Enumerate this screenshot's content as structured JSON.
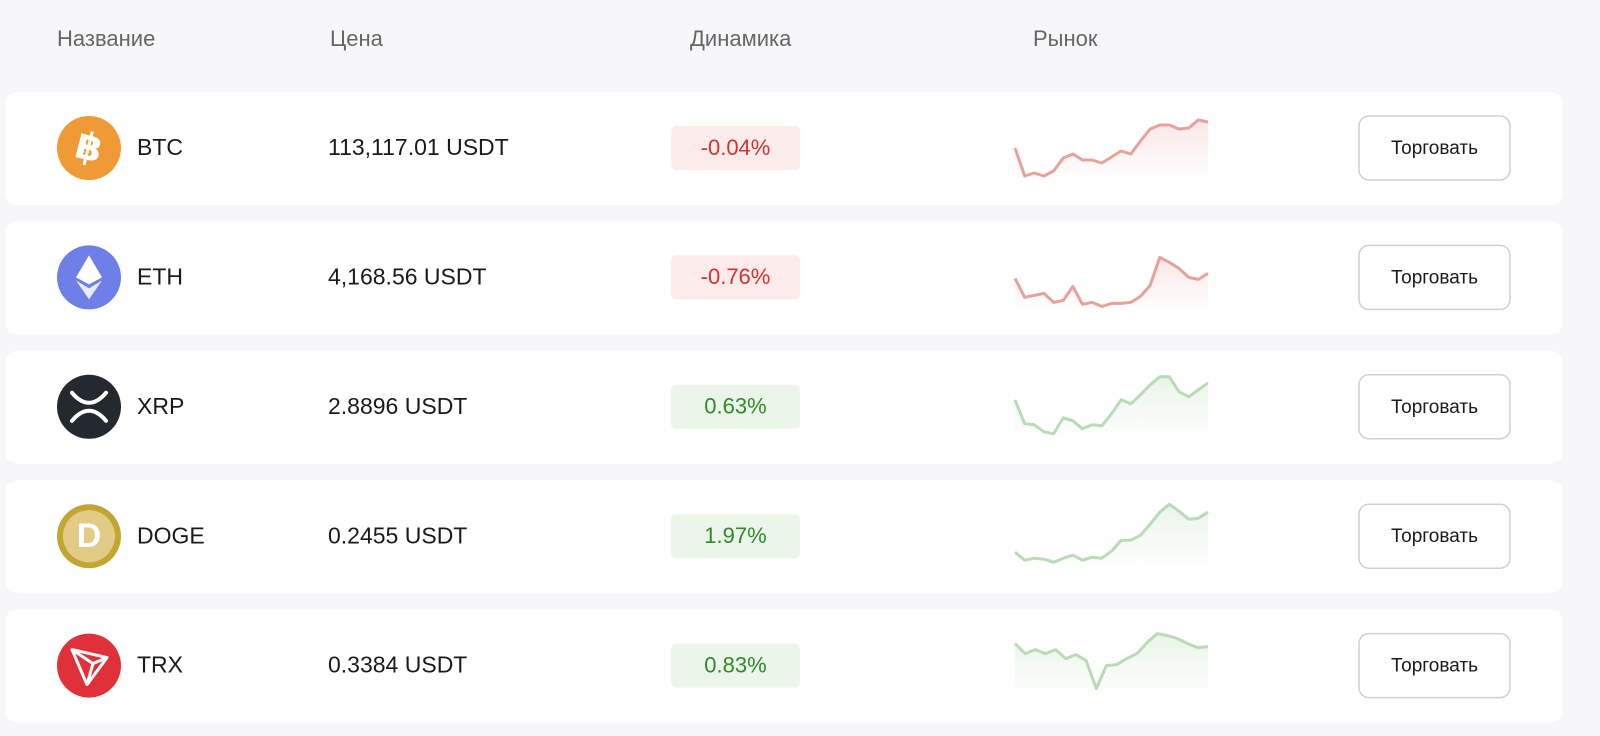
{
  "header": {
    "columns": [
      "Название",
      "Цена",
      "Динамика",
      "Рынок"
    ]
  },
  "rows": [
    {
      "symbol": "BTC",
      "price": "113,117.01 USDT",
      "change": "-0.04%",
      "button": "Торговать",
      "color": "#f09a36",
      "market": [
        33,
        5,
        8,
        5,
        10,
        23,
        27,
        21,
        21,
        18,
        24,
        30,
        27,
        40,
        52,
        56,
        56,
        52,
        53,
        61,
        59
      ]
    },
    {
      "symbol": "ETH",
      "price": "4,168.56 USDT",
      "change": "-0.76%",
      "button": "Торговать",
      "color": "#6f7fe8",
      "market": [
        32,
        13,
        15,
        17,
        8,
        10,
        24,
        6,
        8,
        4,
        7,
        7,
        8,
        14,
        25,
        53,
        48,
        42,
        33,
        31,
        37
      ]
    },
    {
      "symbol": "XRP",
      "price": "2.8896 USDT",
      "change": "0.63%",
      "button": "Торговать",
      "color": "#23292f",
      "market": [
        40,
        16,
        15,
        8,
        6,
        22,
        19,
        11,
        15,
        14,
        26,
        40,
        36,
        45,
        55,
        63,
        63,
        48,
        43,
        50,
        57
      ]
    },
    {
      "symbol": "DOGE",
      "price": "0.2455 USDT",
      "change": "1.97%",
      "button": "Торговать",
      "color": "#c2a633",
      "market": [
        17,
        9,
        11,
        10,
        7,
        11,
        14,
        9,
        12,
        11,
        18,
        29,
        29,
        34,
        45,
        57,
        65,
        58,
        50,
        51,
        57
      ]
    },
    {
      "symbol": "TRX",
      "price": "0.3384 USDT",
      "change": "0.83%",
      "button": "Торговать",
      "color": "#e0313b",
      "market": [
        55,
        45,
        49,
        45,
        49,
        40,
        44,
        38,
        10,
        33,
        34,
        40,
        45,
        56,
        65,
        63,
        60,
        55,
        51,
        52
      ]
    }
  ]
}
